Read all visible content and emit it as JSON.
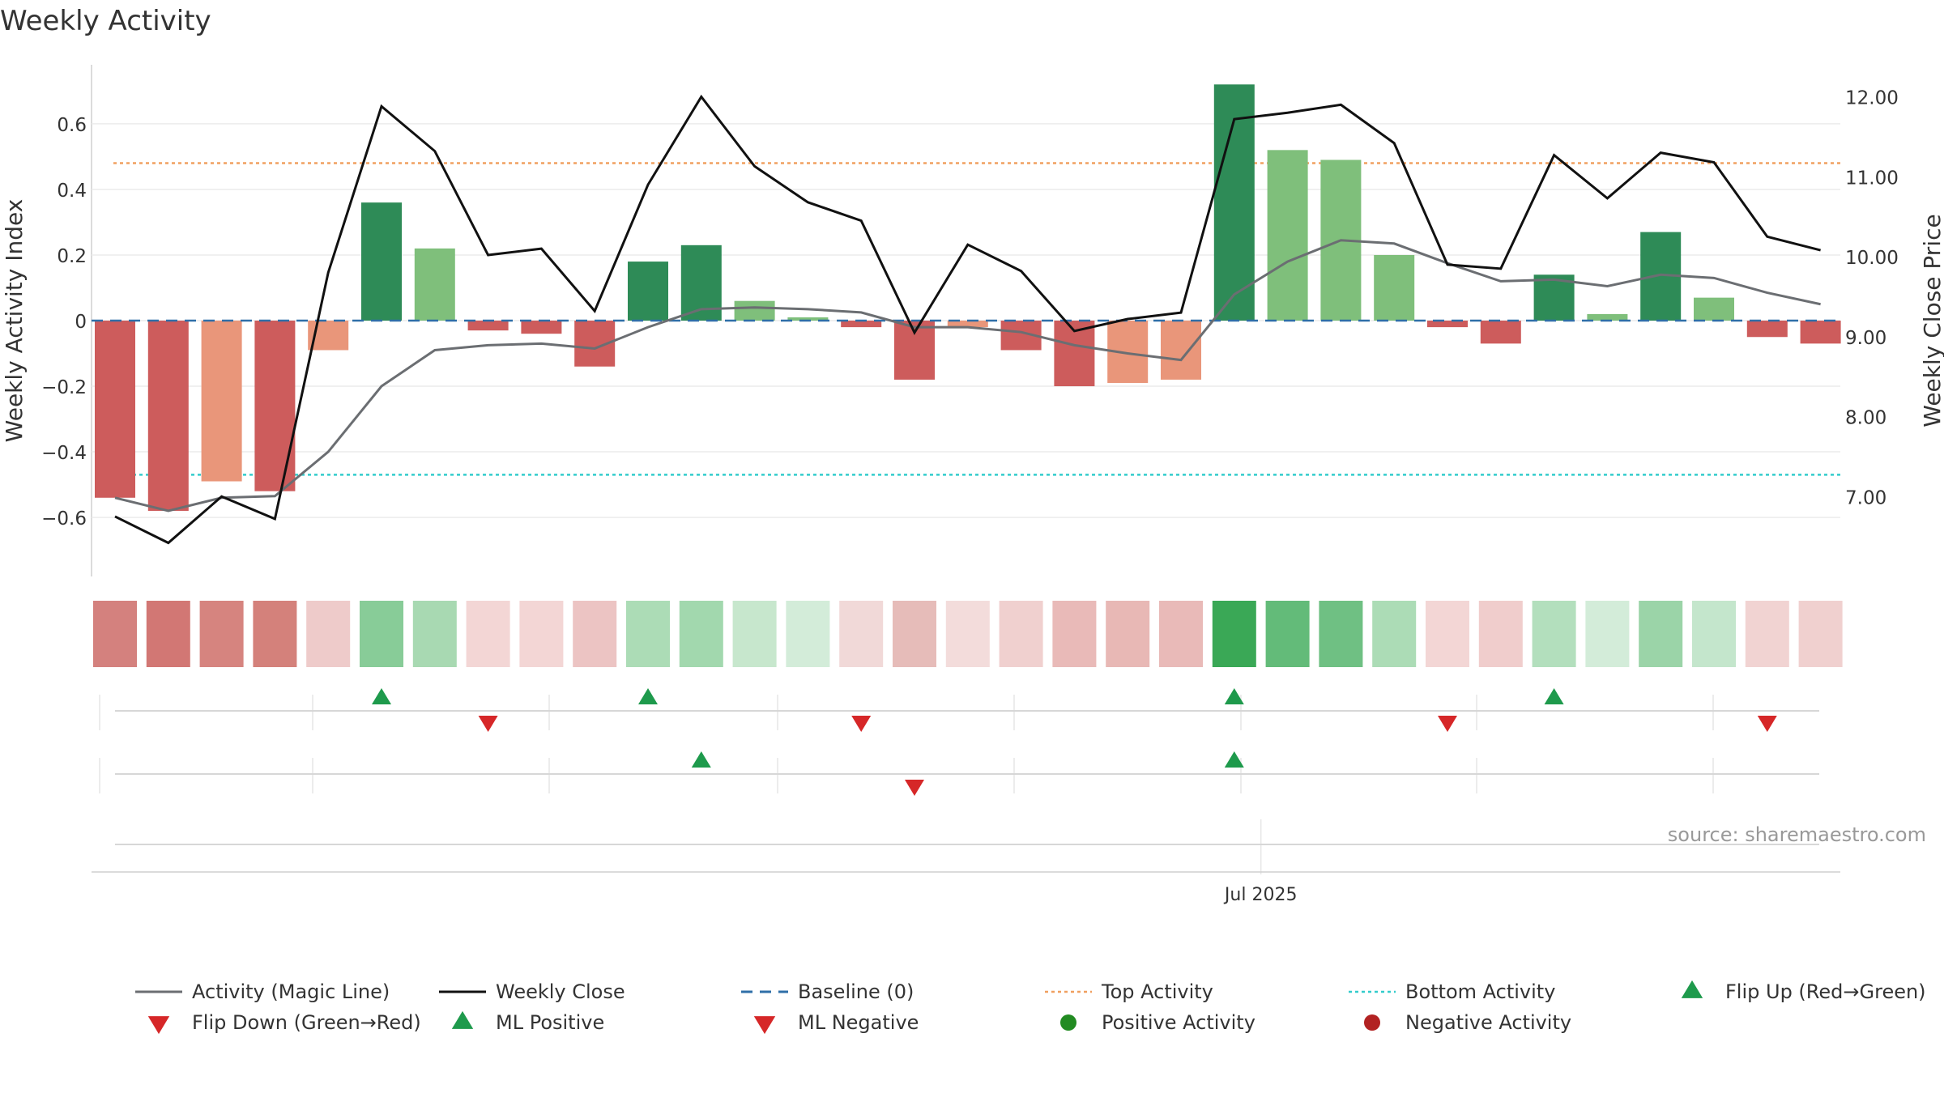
{
  "chart_data": {
    "type": "bar",
    "title": "Weekly Activity",
    "source": "source: sharemaestro.com",
    "y_left_label": "Weekly Activity Index",
    "y_right_label": "Weekly Close Price",
    "y_left_range": [
      -0.78,
      0.78
    ],
    "y_right_range": [
      6.0,
      12.4
    ],
    "y_left_ticks": [
      {
        "v": 0.6,
        "label": "0.6"
      },
      {
        "v": 0.4,
        "label": "0.4"
      },
      {
        "v": 0.2,
        "label": "0.2"
      },
      {
        "v": 0,
        "label": "0"
      },
      {
        "v": -0.2,
        "label": "−0.2"
      },
      {
        "v": -0.4,
        "label": "−0.4"
      },
      {
        "v": -0.6,
        "label": "−0.6"
      }
    ],
    "y_right_ticks": [
      {
        "v": 12,
        "label": "12.00"
      },
      {
        "v": 11,
        "label": "11.00"
      },
      {
        "v": 10,
        "label": "10.00"
      },
      {
        "v": 9,
        "label": "9.00"
      },
      {
        "v": 8,
        "label": "8.00"
      },
      {
        "v": 7,
        "label": "7.00"
      }
    ],
    "x_tick": {
      "index": 21.5,
      "label": "Jul 2025"
    },
    "n_weeks": 33,
    "activity": [
      -0.54,
      -0.58,
      -0.49,
      -0.52,
      -0.09,
      0.36,
      0.22,
      -0.03,
      -0.04,
      -0.14,
      0.18,
      0.23,
      0.06,
      0.01,
      -0.02,
      -0.18,
      -0.02,
      -0.09,
      -0.2,
      -0.19,
      -0.18,
      0.72,
      0.52,
      0.49,
      0.2,
      -0.02,
      -0.07,
      0.14,
      0.02,
      0.27,
      0.07,
      -0.05,
      -0.07
    ],
    "bar_colors": [
      "#cd5c5c",
      "#cd5c5c",
      "#e9967a",
      "#cd5c5c",
      "#e9967a",
      "#2e8b57",
      "#7fbf7b",
      "#cd5c5c",
      "#cd5c5c",
      "#cd5c5c",
      "#2e8b57",
      "#2e8b57",
      "#7fbf7b",
      "#7fbf7b",
      "#cd5c5c",
      "#cd5c5c",
      "#e9967a",
      "#cd5c5c",
      "#cd5c5c",
      "#e9967a",
      "#e9967a",
      "#2e8b57",
      "#7fbf7b",
      "#7fbf7b",
      "#7fbf7b",
      "#cd5c5c",
      "#cd5c5c",
      "#2e8b57",
      "#7fbf7b",
      "#2e8b57",
      "#7fbf7b",
      "#cd5c5c",
      "#cd5c5c"
    ],
    "magic_line": [
      -0.54,
      -0.58,
      -0.54,
      -0.535,
      -0.4,
      -0.2,
      -0.09,
      -0.075,
      -0.07,
      -0.085,
      -0.02,
      0.035,
      0.04,
      0.035,
      0.025,
      -0.02,
      -0.02,
      -0.035,
      -0.075,
      -0.1,
      -0.12,
      0.08,
      0.18,
      0.245,
      0.235,
      0.175,
      0.12,
      0.125,
      0.105,
      0.14,
      0.13,
      0.085,
      0.05
    ],
    "weekly_close": [
      6.75,
      6.42,
      7.0,
      6.72,
      9.8,
      11.88,
      11.32,
      10.02,
      10.1,
      9.32,
      10.9,
      12.0,
      11.13,
      10.68,
      10.45,
      9.05,
      10.15,
      9.82,
      9.07,
      9.22,
      9.3,
      11.72,
      11.8,
      11.9,
      11.42,
      9.9,
      9.85,
      11.27,
      10.73,
      11.3,
      11.18,
      10.25,
      10.08
    ],
    "heat_colors": [
      "#d4817e",
      "#d27774",
      "#d6847f",
      "#d4817b",
      "#eecbca",
      "#88cc98",
      "#a8d9b2",
      "#f3d6d5",
      "#f3d6d5",
      "#ecc4c3",
      "#acdcb6",
      "#a2d8ae",
      "#c7e7cd",
      "#d3ecd9",
      "#f1d9d8",
      "#e6bcb9",
      "#f3dcdb",
      "#f0d0cf",
      "#e9bab8",
      "#e8b8b5",
      "#e9bab8",
      "#3aa856",
      "#63bb79",
      "#6fc083",
      "#acdcb6",
      "#f3d6d5",
      "#f0cdcc",
      "#b3dfbd",
      "#d3ecd9",
      "#9bd4a8",
      "#c4e6cc",
      "#f1d3d2",
      "#f0d0cf"
    ],
    "flips": [
      {
        "index": 5,
        "dir": "up"
      },
      {
        "index": 7,
        "dir": "down"
      },
      {
        "index": 10,
        "dir": "up"
      },
      {
        "index": 14,
        "dir": "down"
      },
      {
        "index": 21,
        "dir": "up"
      },
      {
        "index": 25,
        "dir": "down"
      },
      {
        "index": 27,
        "dir": "up"
      },
      {
        "index": 31,
        "dir": "down"
      }
    ],
    "ml_signals": [
      {
        "index": 11,
        "dir": "up"
      },
      {
        "index": 15,
        "dir": "down"
      },
      {
        "index": 21,
        "dir": "up"
      }
    ],
    "top_activity": 0.48,
    "bottom_activity": -0.47,
    "colors": {
      "magic_line": "#6b6e72",
      "close": "#111111",
      "baseline": "#2f6fa8",
      "top": "#f0a060",
      "bottom": "#33cccc",
      "up": "#1e9a4c",
      "down": "#d62728",
      "pos_dot": "#228b22",
      "neg_dot": "#b22222"
    },
    "legend": [
      {
        "key": "magic",
        "label": "Activity (Magic Line)"
      },
      {
        "key": "close",
        "label": "Weekly Close"
      },
      {
        "key": "baseline",
        "label": "Baseline (0)"
      },
      {
        "key": "top",
        "label": "Top Activity"
      },
      {
        "key": "bottom",
        "label": "Bottom Activity"
      },
      {
        "key": "flipup",
        "label": "Flip Up (Red→Green)"
      },
      {
        "key": "flipdown",
        "label": "Flip Down (Green→Red)"
      },
      {
        "key": "mlpos",
        "label": "ML Positive"
      },
      {
        "key": "mlneg",
        "label": "ML Negative"
      },
      {
        "key": "posact",
        "label": "Positive Activity"
      },
      {
        "key": "negact",
        "label": "Negative Activity"
      }
    ]
  }
}
